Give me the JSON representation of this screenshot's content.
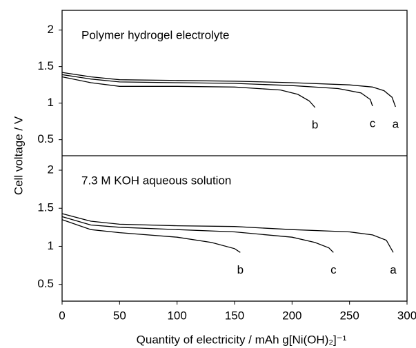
{
  "chart_data": [
    {
      "type": "line",
      "title": "Polymer hydrogel electrolyte",
      "ylabel": "Cell voltage / V",
      "xlim": [
        0,
        300
      ],
      "ylim": [
        0.28,
        2.27
      ],
      "yticks": [
        0.5,
        1.0,
        1.5,
        2.0
      ],
      "color": "#000000",
      "series": [
        {
          "name": "a",
          "x": [
            0,
            25,
            50,
            100,
            150,
            200,
            250,
            270,
            280,
            287,
            290
          ],
          "values": [
            1.42,
            1.36,
            1.32,
            1.31,
            1.3,
            1.28,
            1.25,
            1.22,
            1.17,
            1.08,
            0.95
          ]
        },
        {
          "name": "c",
          "x": [
            0,
            25,
            50,
            100,
            150,
            200,
            240,
            260,
            268,
            270
          ],
          "values": [
            1.39,
            1.33,
            1.29,
            1.28,
            1.27,
            1.24,
            1.2,
            1.14,
            1.05,
            0.96
          ]
        },
        {
          "name": "b",
          "x": [
            0,
            25,
            50,
            100,
            150,
            190,
            205,
            215,
            220
          ],
          "values": [
            1.36,
            1.28,
            1.23,
            1.23,
            1.22,
            1.18,
            1.12,
            1.03,
            0.94
          ]
        }
      ]
    },
    {
      "type": "line",
      "title": "7.3 M KOH aqueous solution",
      "xlabel": "Quantity of electricity / mAh g[Ni(OH)₂]⁻¹",
      "xlim": [
        0,
        300
      ],
      "xticks": [
        0,
        50,
        100,
        150,
        200,
        250,
        300
      ],
      "ylim": [
        0.28,
        2.19
      ],
      "yticks": [
        0.5,
        1.0,
        1.5,
        2.0
      ],
      "color": "#000000",
      "series": [
        {
          "name": "a",
          "x": [
            0,
            25,
            50,
            100,
            150,
            200,
            250,
            270,
            282,
            288
          ],
          "values": [
            1.43,
            1.33,
            1.29,
            1.27,
            1.26,
            1.22,
            1.19,
            1.15,
            1.08,
            0.92
          ]
        },
        {
          "name": "c",
          "x": [
            0,
            25,
            50,
            100,
            150,
            200,
            220,
            232,
            236
          ],
          "values": [
            1.39,
            1.28,
            1.25,
            1.22,
            1.19,
            1.12,
            1.05,
            0.98,
            0.92
          ]
        },
        {
          "name": "b",
          "x": [
            0,
            25,
            50,
            100,
            130,
            150,
            155
          ],
          "values": [
            1.35,
            1.22,
            1.18,
            1.12,
            1.05,
            0.97,
            0.92
          ]
        }
      ]
    }
  ]
}
